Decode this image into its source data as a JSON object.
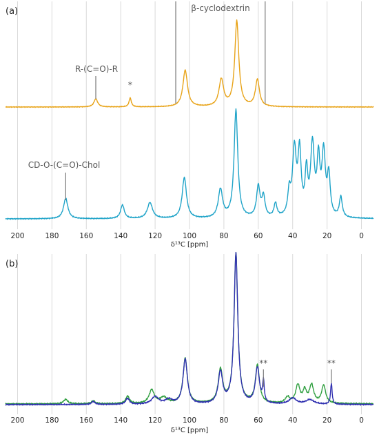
{
  "chart_data": [
    {
      "panel": "(a)",
      "type": "line",
      "xlabel": "δ¹³C [ppm]",
      "xlim": [
        207,
        -7
      ],
      "x_reversed": true,
      "xticks": [
        200,
        180,
        160,
        140,
        120,
        100,
        80,
        60,
        40,
        20,
        0
      ],
      "grid": "vertical",
      "series": [
        {
          "color": "#e8a317",
          "baseline": 0.86,
          "peaks": [
            [
              154.5,
              0.1,
              1.3
            ],
            [
              134.5,
              0.11,
              0.8
            ],
            [
              102.5,
              0.45,
              1.6
            ],
            [
              81.5,
              0.33,
              1.6
            ],
            [
              72.5,
              1.05,
              1.4
            ],
            [
              60.5,
              0.33,
              1.4
            ]
          ]
        },
        {
          "color": "#1ea3c8",
          "baseline": 0.12,
          "peaks": [
            [
              172,
              0.18,
              1.5
            ],
            [
              139,
              0.12,
              1.3
            ],
            [
              123,
              0.14,
              1.8
            ],
            [
              103,
              0.36,
              1.5
            ],
            [
              82,
              0.25,
              1.5
            ],
            [
              73,
              0.95,
              1.3
            ],
            [
              60,
              0.27,
              1.2
            ],
            [
              57,
              0.18,
              1.1
            ],
            [
              50,
              0.12,
              1.0
            ],
            [
              42,
              0.2,
              1.0
            ],
            [
              39,
              0.58,
              1.3
            ],
            [
              36,
              0.55,
              1.1
            ],
            [
              32,
              0.37,
              0.9
            ],
            [
              28.5,
              0.62,
              1.3
            ],
            [
              25,
              0.47,
              1.0
            ],
            [
              22,
              0.55,
              1.2
            ],
            [
              19,
              0.35,
              1.0
            ],
            [
              12,
              0.18,
              1.0
            ]
          ]
        }
      ],
      "annotations": [
        {
          "text": "β-cyclodextrin",
          "marks_at": [
            108,
            56
          ]
        },
        {
          "text": "R-(C=O)-R",
          "marks_at": [
            154.5
          ]
        },
        {
          "text": "*",
          "marks_at": [
            134.5
          ]
        },
        {
          "text": "CD-O-(C=O)-Chol",
          "marks_at": [
            172
          ]
        }
      ]
    },
    {
      "panel": "(b)",
      "type": "line",
      "xlabel": "δ¹³C [ppm]",
      "xlim": [
        207,
        -7
      ],
      "x_reversed": true,
      "xticks": [
        200,
        180,
        160,
        140,
        120,
        100,
        80,
        60,
        40,
        20,
        0
      ],
      "grid": "vertical",
      "series": [
        {
          "color": "#2e9e3e",
          "baseline": 0.015,
          "peaks": [
            [
              172,
              0.03,
              1.5
            ],
            [
              156,
              0.02,
              1.2
            ],
            [
              136,
              0.05,
              1.3
            ],
            [
              122,
              0.09,
              1.8
            ],
            [
              115,
              0.04,
              2.5
            ],
            [
              102.5,
              0.3,
              1.5
            ],
            [
              82,
              0.22,
              1.5
            ],
            [
              73,
              1.0,
              1.3
            ],
            [
              60.5,
              0.25,
              1.4
            ],
            [
              43,
              0.04,
              1.5
            ],
            [
              37,
              0.12,
              1.5
            ],
            [
              33,
              0.08,
              1.2
            ],
            [
              29,
              0.12,
              1.5
            ],
            [
              22,
              0.12,
              1.4
            ]
          ]
        },
        {
          "color": "#3030b0",
          "baseline": 0.01,
          "peaks": [
            [
              156,
              0.02,
              1.2
            ],
            [
              136,
              0.04,
              1.3
            ],
            [
              120,
              0.05,
              2.5
            ],
            [
              112,
              0.03,
              2.5
            ],
            [
              102.5,
              0.3,
              1.5
            ],
            [
              82,
              0.21,
              1.5
            ],
            [
              73,
              1.0,
              1.3
            ],
            [
              60.5,
              0.24,
              1.4
            ],
            [
              57,
              0.14,
              0.55
            ],
            [
              40,
              0.04,
              2.5
            ],
            [
              30,
              0.03,
              3.0
            ],
            [
              17.5,
              0.14,
              0.55
            ]
          ]
        }
      ],
      "annotations": [
        {
          "text": "**",
          "marks_at": [
            57
          ]
        },
        {
          "text": "**",
          "marks_at": [
            17.5
          ]
        }
      ]
    }
  ]
}
